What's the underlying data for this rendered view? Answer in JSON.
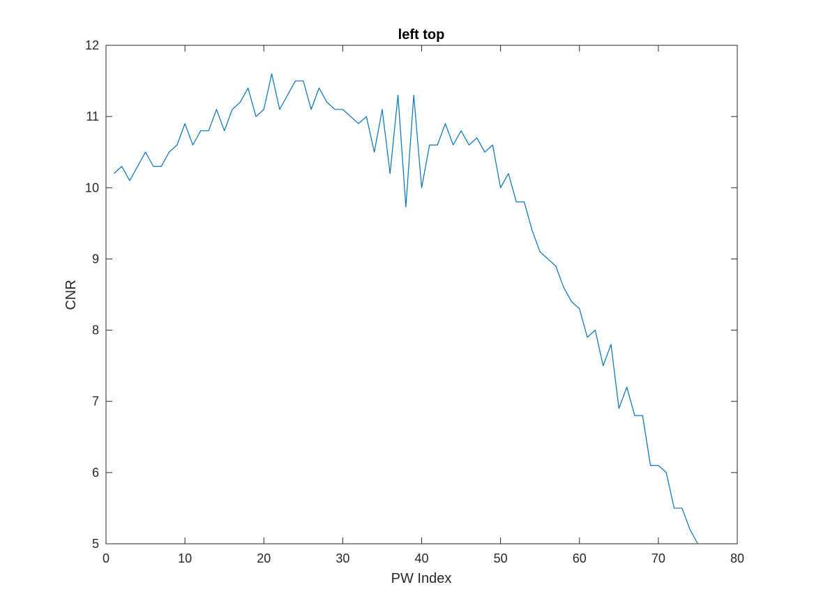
{
  "chart_data": {
    "type": "line",
    "title": "left top",
    "xlabel": "PW Index",
    "ylabel": "CNR",
    "xlim": [
      0,
      80
    ],
    "ylim": [
      5,
      12
    ],
    "xticks": [
      0,
      10,
      20,
      30,
      40,
      50,
      60,
      70,
      80
    ],
    "yticks": [
      5,
      6,
      7,
      8,
      9,
      10,
      11,
      12
    ],
    "grid": false,
    "line_color": "#0072BD",
    "axis_color": "#262626",
    "series": [
      {
        "x": [
          1,
          2,
          3,
          4,
          5,
          6,
          7,
          8,
          9,
          10,
          11,
          12,
          13,
          14,
          15,
          16,
          17,
          18,
          19,
          20,
          21,
          22,
          23,
          24,
          25,
          26,
          27,
          28,
          29,
          30,
          31,
          32,
          33,
          34,
          35,
          36,
          37,
          38,
          39,
          40,
          41,
          42,
          43,
          44,
          45,
          46,
          47,
          48,
          49,
          50,
          51,
          52,
          53,
          54,
          55,
          56,
          57,
          58,
          59,
          60,
          61,
          62,
          63,
          64,
          65,
          66,
          67,
          68,
          69,
          70,
          71,
          72,
          73,
          74,
          75
        ],
        "values": [
          10.2,
          10.3,
          10.1,
          10.3,
          10.5,
          10.3,
          10.3,
          10.5,
          10.6,
          10.9,
          10.6,
          10.8,
          10.8,
          11.1,
          10.8,
          11.1,
          11.2,
          11.4,
          11.0,
          11.1,
          11.6,
          11.1,
          11.3,
          11.5,
          11.5,
          11.1,
          11.4,
          11.2,
          11.1,
          11.1,
          11.0,
          10.9,
          11.0,
          10.5,
          11.1,
          10.2,
          11.3,
          9.73,
          11.3,
          10.0,
          10.6,
          10.6,
          10.9,
          10.6,
          10.8,
          10.6,
          10.7,
          10.5,
          10.6,
          10.0,
          10.2,
          9.8,
          9.8,
          9.4,
          9.1,
          9.0,
          8.9,
          8.6,
          8.4,
          8.3,
          7.9,
          8.0,
          7.5,
          7.8,
          6.9,
          7.2,
          6.8,
          6.8,
          6.1,
          6.1,
          6.0,
          5.5,
          5.5,
          5.2,
          5.0
        ]
      }
    ]
  }
}
